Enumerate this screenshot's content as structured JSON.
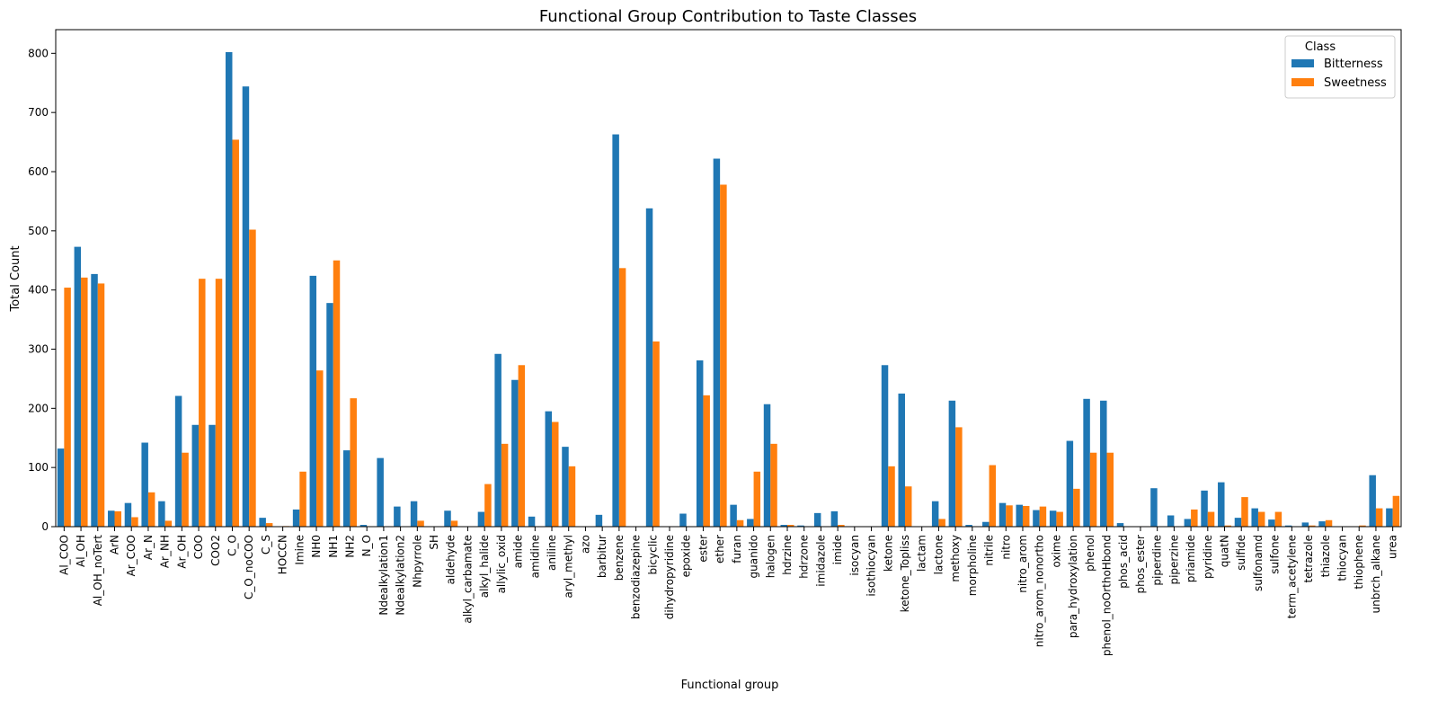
{
  "chart_data": {
    "type": "bar",
    "title": "Functional Group Contribution to Taste Classes",
    "xlabel": "Functional group",
    "ylabel": "Total Count",
    "ylim": [
      0,
      840
    ],
    "yticks": [
      0,
      100,
      200,
      300,
      400,
      500,
      600,
      700,
      800
    ],
    "legend": {
      "title": "Class",
      "placement": "top-right"
    },
    "colors": {
      "Bitterness": "#1f77b4",
      "Sweetness": "#ff7f0e"
    },
    "categories": [
      "Al_COO",
      "Al_OH",
      "Al_OH_noTert",
      "ArN",
      "Ar_COO",
      "Ar_N",
      "Ar_NH",
      "Ar_OH",
      "COO",
      "COO2",
      "C_O",
      "C_O_noCOO",
      "C_S",
      "HOCCN",
      "Imine",
      "NH0",
      "NH1",
      "NH2",
      "N_O",
      "Ndealkylation1",
      "Ndealkylation2",
      "Nhpyrrole",
      "SH",
      "aldehyde",
      "alkyl_carbamate",
      "alkyl_halide",
      "allylic_oxid",
      "amide",
      "amidine",
      "aniline",
      "aryl_methyl",
      "azo",
      "barbitur",
      "benzene",
      "benzodiazepine",
      "bicyclic",
      "dihydropyridine",
      "epoxide",
      "ester",
      "ether",
      "furan",
      "guanido",
      "halogen",
      "hdrzine",
      "hdrzone",
      "imidazole",
      "imide",
      "isocyan",
      "isothiocyan",
      "ketone",
      "ketone_Topliss",
      "lactam",
      "lactone",
      "methoxy",
      "morpholine",
      "nitrile",
      "nitro",
      "nitro_arom",
      "nitro_arom_nonortho",
      "oxime",
      "para_hydroxylation",
      "phenol",
      "phenol_noOrthoHbond",
      "phos_acid",
      "phos_ester",
      "piperdine",
      "piperzine",
      "priamide",
      "pyridine",
      "quatN",
      "sulfide",
      "sulfonamd",
      "sulfone",
      "term_acetylene",
      "tetrazole",
      "thiazole",
      "thiocyan",
      "thiophene",
      "unbrch_alkane",
      "urea"
    ],
    "series": [
      {
        "name": "Bitterness",
        "values": [
          132,
          473,
          427,
          27,
          40,
          142,
          43,
          221,
          172,
          172,
          802,
          744,
          15,
          0,
          29,
          424,
          378,
          129,
          3,
          116,
          34,
          43,
          0,
          27,
          0,
          25,
          292,
          248,
          17,
          195,
          135,
          0,
          20,
          663,
          0,
          538,
          0,
          22,
          281,
          622,
          37,
          13,
          207,
          3,
          2,
          23,
          26,
          0,
          0,
          273,
          225,
          0,
          43,
          213,
          3,
          8,
          40,
          37,
          28,
          27,
          145,
          216,
          213,
          6,
          0,
          65,
          19,
          13,
          61,
          75,
          15,
          31,
          12,
          2,
          7,
          9,
          0,
          0,
          87,
          31
        ]
      },
      {
        "name": "Sweetness",
        "values": [
          404,
          421,
          411,
          26,
          16,
          58,
          10,
          125,
          419,
          419,
          654,
          502,
          6,
          1,
          93,
          264,
          450,
          217,
          0,
          0,
          0,
          10,
          0,
          10,
          0,
          72,
          140,
          273,
          0,
          177,
          102,
          0,
          0,
          437,
          0,
          313,
          0,
          0,
          222,
          578,
          11,
          93,
          140,
          3,
          0,
          0,
          3,
          0,
          0,
          102,
          68,
          0,
          13,
          168,
          0,
          104,
          36,
          35,
          34,
          25,
          64,
          125,
          125,
          0,
          0,
          0,
          0,
          29,
          25,
          2,
          50,
          25,
          25,
          0,
          2,
          11,
          0,
          2,
          31,
          52
        ]
      }
    ]
  }
}
